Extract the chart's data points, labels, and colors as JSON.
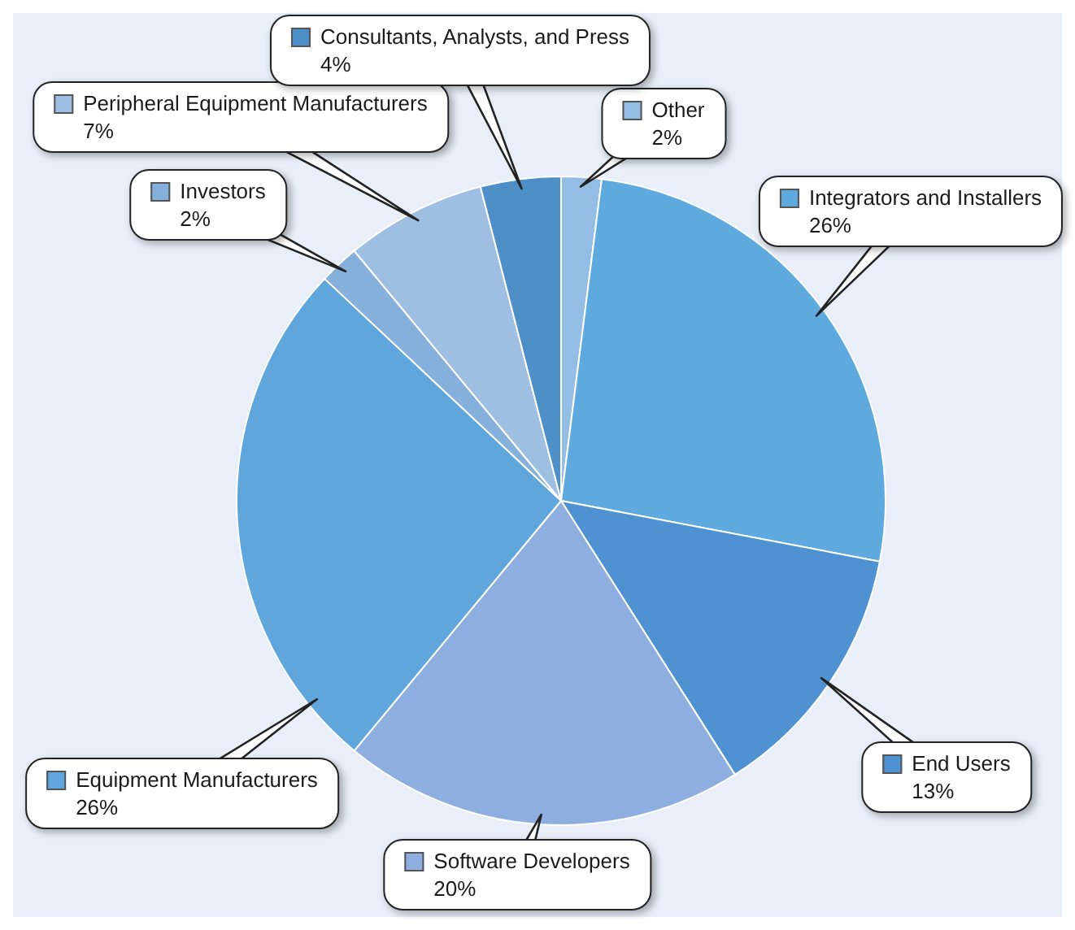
{
  "chart_data": {
    "type": "pie",
    "categories": [
      "Other",
      "Integrators and Installers",
      "End Users",
      "Software Developers",
      "Equipment Manufacturers",
      "Investors",
      "Peripheral Equipment Manufacturers",
      "Consultants, Analysts, and Press"
    ],
    "values": [
      2,
      26,
      13,
      20,
      26,
      2,
      7,
      4
    ],
    "value_labels": [
      "2%",
      "26%",
      "13%",
      "20%",
      "26%",
      "2%",
      "7%",
      "4%"
    ],
    "colors": [
      "#93bde4",
      "#5eaade",
      "#4f92d2",
      "#8eaedf",
      "#5ea6dc",
      "#86b0dc",
      "#9fbfe2",
      "#4f8fc7"
    ],
    "legend": "top"
  }
}
